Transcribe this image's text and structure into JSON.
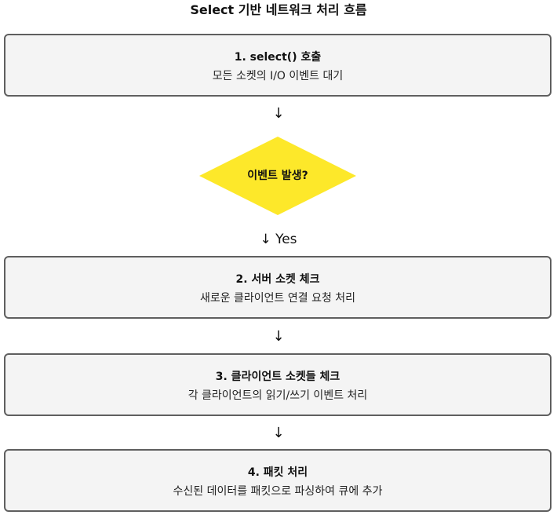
{
  "title": "Select 기반 네트워크 처리 흐름",
  "steps": [
    {
      "title": "1. select() 호출",
      "desc": "모든 소켓의 I/O 이벤트 대기"
    },
    {
      "title": "2. 서버 소켓 체크",
      "desc": "새로운 클라이언트 연결 요청 처리"
    },
    {
      "title": "3. 클라이언트 소켓들 체크",
      "desc": "각 클라이언트의 읽기/쓰기 이벤트 처리"
    },
    {
      "title": "4. 패킷 처리",
      "desc": "수신된 데이터를 패킷으로 파싱하여 큐에 추가"
    }
  ],
  "decision": {
    "label": "이벤트 발생?",
    "color": "#fde82a"
  },
  "arrows": {
    "a1": "↓",
    "a2": "↓ Yes",
    "a3": "↓",
    "a4": "↓"
  },
  "colors": {
    "box_fill": "#f4f4f4",
    "box_border": "#5f5f5f"
  }
}
